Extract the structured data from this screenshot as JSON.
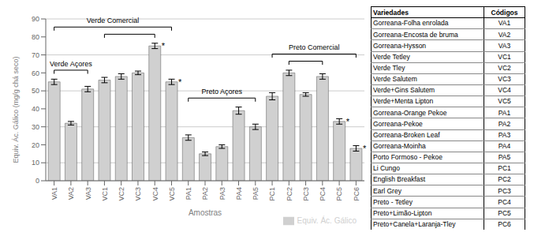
{
  "chart_data": {
    "type": "bar",
    "categories": [
      "VA1",
      "VA2",
      "VA3",
      "VC1",
      "VC2",
      "VC3",
      "VC4",
      "VC5",
      "PA1",
      "PA2",
      "PA3",
      "PA4",
      "PA5",
      "PC1",
      "PC2",
      "PC3",
      "PC4",
      "PC5",
      "PC6"
    ],
    "series": [
      {
        "name": "Equiv. Ác. Gálico",
        "color": "#d0d0d0",
        "values": [
          55,
          32,
          51,
          56,
          58,
          60,
          75,
          55,
          24,
          15,
          19,
          39,
          30,
          47,
          60,
          48,
          58,
          33,
          18
        ],
        "errors": [
          1.5,
          1.0,
          1.5,
          1.5,
          1.5,
          1.0,
          1.5,
          1.5,
          1.5,
          1.0,
          1.0,
          2.0,
          1.5,
          2.0,
          1.5,
          1.0,
          1.5,
          1.5,
          1.5
        ]
      }
    ],
    "xlabel": "Amostras",
    "ylabel": "Equiv. Ác. Gálico (mg/g chá seco)",
    "ylim": [
      0,
      90
    ],
    "yticks": [
      0,
      10,
      20,
      30,
      40,
      50,
      60,
      70,
      80,
      90
    ],
    "grid": true,
    "legend": "bottom",
    "annotations": [
      {
        "text": "*",
        "category": "VC4"
      },
      {
        "text": "*",
        "category": "VC5"
      },
      {
        "text": "*",
        "category": "PC5"
      },
      {
        "text": "*",
        "category": "PC6"
      }
    ],
    "brackets": [
      {
        "text": "Verde Açores",
        "from": "VA1",
        "to": "VA3"
      },
      {
        "from": "VC1",
        "to": "VC4"
      },
      {
        "text": "Verde Comercial",
        "from": "VA1",
        "to": "VC5"
      },
      {
        "text": "Preto Açores",
        "from": "PA1",
        "to": "PA5"
      },
      {
        "from": "PC2",
        "to": "PC4"
      },
      {
        "text": "Preto Comercial",
        "from": "PC1",
        "to": "PC6"
      }
    ],
    "table": {
      "columns": [
        "Variedades",
        "Códigos"
      ],
      "rows": [
        [
          "Gorreana-Folha enrolada",
          "VA1"
        ],
        [
          "Gorreana-Encosta de bruma",
          "VA2"
        ],
        [
          "Gorreana-Hysson",
          "VA3"
        ],
        [
          "Verde Tetley",
          "VC1"
        ],
        [
          "Verde Tley",
          "VC2"
        ],
        [
          "Verde Salutem",
          "VC3"
        ],
        [
          "Verde+Gins Salutem",
          "VC4"
        ],
        [
          "Verde+Menta Lipton",
          "VC5"
        ],
        [
          "Gorreana-Orange Pekoe",
          "PA1"
        ],
        [
          "Gorreana-Pekoe",
          "PA2"
        ],
        [
          "Gorreana-Broken Leaf",
          "PA3"
        ],
        [
          "Gorreana-Moinha",
          "PA4"
        ],
        [
          "Porto Formoso - Pekoe",
          "PA5"
        ],
        [
          "Li Cungo",
          "PC1"
        ],
        [
          "English Breakfast",
          "PC2"
        ],
        [
          "Earl Grey",
          "PC3"
        ],
        [
          "Preto - Tetley",
          "PC4"
        ],
        [
          "Preto+Limão-Lipton",
          "PC5"
        ],
        [
          "Preto+Canela+Laranja-Tley",
          "PC6"
        ]
      ]
    }
  }
}
